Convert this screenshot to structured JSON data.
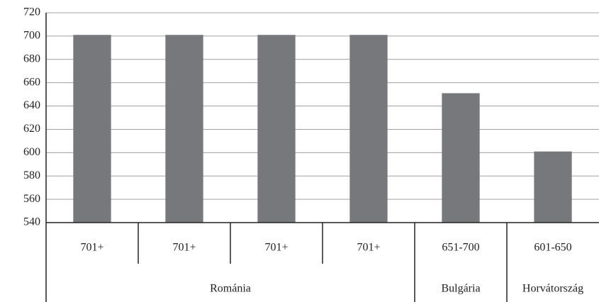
{
  "chart_data": {
    "type": "bar",
    "categories": [
      "701+",
      "701+",
      "701+",
      "701+",
      "651-700",
      "601-650"
    ],
    "groups": [
      "Románia",
      null,
      null,
      null,
      "Bulgária",
      "Horvátország"
    ],
    "values": [
      701,
      701,
      701,
      701,
      651,
      601
    ],
    "color": "#77787b",
    "ylim": [
      540,
      720
    ],
    "yticks": [
      540,
      560,
      580,
      600,
      620,
      640,
      660,
      680,
      700,
      720
    ],
    "grid": true
  }
}
